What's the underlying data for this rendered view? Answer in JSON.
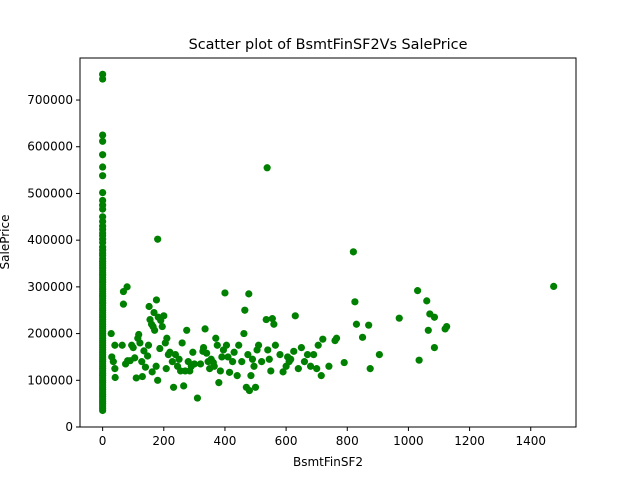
{
  "chart_data": {
    "type": "scatter",
    "title": "Scatter plot of BsmtFinSF2Vs SalePrice",
    "xlabel": "BsmtFinSF2",
    "ylabel": "SalePrice",
    "xlim": [
      -74,
      1548
    ],
    "ylim": [
      0,
      790000
    ],
    "xticks": [
      0,
      200,
      400,
      600,
      800,
      1000,
      1200,
      1400
    ],
    "yticks": [
      0,
      100000,
      200000,
      300000,
      400000,
      500000,
      600000,
      700000
    ],
    "marker_color": "#008000",
    "grid": false,
    "legend": "none",
    "series": [
      {
        "points": [
          [
            0,
            755000
          ],
          [
            0,
            745000
          ],
          [
            0,
            625000
          ],
          [
            0,
            611657
          ],
          [
            0,
            582933
          ],
          [
            0,
            556581
          ],
          [
            0,
            538000
          ],
          [
            0,
            501837
          ],
          [
            0,
            485000
          ],
          [
            0,
            475000
          ],
          [
            0,
            466500
          ],
          [
            0,
            450000
          ],
          [
            0,
            440000
          ],
          [
            0,
            430000
          ],
          [
            0,
            423000
          ],
          [
            0,
            415298
          ],
          [
            0,
            410000
          ],
          [
            0,
            402000
          ],
          [
            0,
            395000
          ],
          [
            0,
            385000
          ],
          [
            0,
            378500
          ],
          [
            0,
            372500
          ],
          [
            0,
            367294
          ],
          [
            0,
            360000
          ],
          [
            0,
            354000
          ],
          [
            0,
            350000
          ],
          [
            0,
            345000
          ],
          [
            0,
            340000
          ],
          [
            0,
            335000
          ],
          [
            0,
            330000
          ],
          [
            0,
            325000
          ],
          [
            0,
            320000
          ],
          [
            0,
            315000
          ],
          [
            0,
            310000
          ],
          [
            0,
            305000
          ],
          [
            0,
            300000
          ],
          [
            0,
            295000
          ],
          [
            0,
            290000
          ],
          [
            0,
            285000
          ],
          [
            0,
            280000
          ],
          [
            0,
            275000
          ],
          [
            0,
            270000
          ],
          [
            0,
            265000
          ],
          [
            0,
            260000
          ],
          [
            0,
            255000
          ],
          [
            0,
            250000
          ],
          [
            0,
            245000
          ],
          [
            0,
            240000
          ],
          [
            0,
            235000
          ],
          [
            0,
            230000
          ],
          [
            0,
            225000
          ],
          [
            0,
            220000
          ],
          [
            0,
            215000
          ],
          [
            0,
            210000
          ],
          [
            0,
            205000
          ],
          [
            0,
            200000
          ],
          [
            0,
            195000
          ],
          [
            0,
            190000
          ],
          [
            0,
            185000
          ],
          [
            0,
            180000
          ],
          [
            0,
            175000
          ],
          [
            0,
            170000
          ],
          [
            0,
            165000
          ],
          [
            0,
            160000
          ],
          [
            0,
            155000
          ],
          [
            0,
            150000
          ],
          [
            0,
            145000
          ],
          [
            0,
            140000
          ],
          [
            0,
            135000
          ],
          [
            0,
            130000
          ],
          [
            0,
            125000
          ],
          [
            0,
            120000
          ],
          [
            0,
            115000
          ],
          [
            0,
            110000
          ],
          [
            0,
            105000
          ],
          [
            0,
            100000
          ],
          [
            0,
            95000
          ],
          [
            0,
            90000
          ],
          [
            0,
            85000
          ],
          [
            0,
            80000
          ],
          [
            0,
            75000
          ],
          [
            0,
            70000
          ],
          [
            0,
            65000
          ],
          [
            0,
            60000
          ],
          [
            0,
            55000
          ],
          [
            0,
            50000
          ],
          [
            0,
            45000
          ],
          [
            0,
            40000
          ],
          [
            0,
            35311
          ],
          [
            28,
            200000
          ],
          [
            30,
            150000
          ],
          [
            35,
            140000
          ],
          [
            40,
            125000
          ],
          [
            41,
            106000
          ],
          [
            40,
            175000
          ],
          [
            64,
            175000
          ],
          [
            68,
            290000
          ],
          [
            80,
            300000
          ],
          [
            68,
            263000
          ],
          [
            75,
            135000
          ],
          [
            82,
            142000
          ],
          [
            90,
            142000
          ],
          [
            95,
            175000
          ],
          [
            100,
            170000
          ],
          [
            105,
            148000
          ],
          [
            110,
            105000
          ],
          [
            115,
            190000
          ],
          [
            118,
            198000
          ],
          [
            122,
            180000
          ],
          [
            128,
            140000
          ],
          [
            130,
            108000
          ],
          [
            135,
            163000
          ],
          [
            140,
            128000
          ],
          [
            147,
            152000
          ],
          [
            150,
            175000
          ],
          [
            152,
            258000
          ],
          [
            155,
            230000
          ],
          [
            160,
            220000
          ],
          [
            162,
            118000
          ],
          [
            165,
            215000
          ],
          [
            168,
            245000
          ],
          [
            170,
            207000
          ],
          [
            175,
            130000
          ],
          [
            176,
            272000
          ],
          [
            180,
            100000
          ],
          [
            180,
            402000
          ],
          [
            182,
            235000
          ],
          [
            187,
            168000
          ],
          [
            190,
            228000
          ],
          [
            195,
            215000
          ],
          [
            200,
            238000
          ],
          [
            205,
            180000
          ],
          [
            208,
            125000
          ],
          [
            210,
            190000
          ],
          [
            215,
            155000
          ],
          [
            220,
            160000
          ],
          [
            228,
            140000
          ],
          [
            232,
            85000
          ],
          [
            238,
            155000
          ],
          [
            245,
            130000
          ],
          [
            250,
            145000
          ],
          [
            255,
            120000
          ],
          [
            260,
            180000
          ],
          [
            265,
            88000
          ],
          [
            270,
            120000
          ],
          [
            275,
            207000
          ],
          [
            280,
            140000
          ],
          [
            285,
            120000
          ],
          [
            290,
            130000
          ],
          [
            295,
            160000
          ],
          [
            300,
            135000
          ],
          [
            310,
            62000
          ],
          [
            320,
            135000
          ],
          [
            328,
            162000
          ],
          [
            330,
            170000
          ],
          [
            335,
            210000
          ],
          [
            340,
            158000
          ],
          [
            345,
            140000
          ],
          [
            350,
            125000
          ],
          [
            355,
            145000
          ],
          [
            362,
            138000
          ],
          [
            365,
            130000
          ],
          [
            370,
            190000
          ],
          [
            375,
            175000
          ],
          [
            380,
            95000
          ],
          [
            385,
            120000
          ],
          [
            390,
            150000
          ],
          [
            395,
            165000
          ],
          [
            400,
            287000
          ],
          [
            405,
            175000
          ],
          [
            410,
            150000
          ],
          [
            415,
            117000
          ],
          [
            425,
            140000
          ],
          [
            430,
            160000
          ],
          [
            440,
            110000
          ],
          [
            445,
            175000
          ],
          [
            455,
            140000
          ],
          [
            462,
            200000
          ],
          [
            465,
            250000
          ],
          [
            470,
            85000
          ],
          [
            475,
            155000
          ],
          [
            478,
            285000
          ],
          [
            480,
            78000
          ],
          [
            485,
            110000
          ],
          [
            490,
            145000
          ],
          [
            495,
            130000
          ],
          [
            500,
            85000
          ],
          [
            505,
            165000
          ],
          [
            510,
            175000
          ],
          [
            520,
            140000
          ],
          [
            535,
            230000
          ],
          [
            538,
            555000
          ],
          [
            540,
            165000
          ],
          [
            545,
            145000
          ],
          [
            550,
            120000
          ],
          [
            555,
            232000
          ],
          [
            560,
            220000
          ],
          [
            565,
            175000
          ],
          [
            580,
            155000
          ],
          [
            590,
            118000
          ],
          [
            600,
            130000
          ],
          [
            605,
            150000
          ],
          [
            610,
            140000
          ],
          [
            615,
            145000
          ],
          [
            625,
            162000
          ],
          [
            630,
            238000
          ],
          [
            640,
            125000
          ],
          [
            650,
            170000
          ],
          [
            660,
            140000
          ],
          [
            670,
            155000
          ],
          [
            680,
            130000
          ],
          [
            690,
            155000
          ],
          [
            700,
            125000
          ],
          [
            705,
            175000
          ],
          [
            715,
            110000
          ],
          [
            720,
            188000
          ],
          [
            740,
            130000
          ],
          [
            760,
            185000
          ],
          [
            765,
            190000
          ],
          [
            790,
            138000
          ],
          [
            820,
            375000
          ],
          [
            825,
            268000
          ],
          [
            830,
            220000
          ],
          [
            850,
            192000
          ],
          [
            870,
            218000
          ],
          [
            875,
            125000
          ],
          [
            905,
            155000
          ],
          [
            970,
            233000
          ],
          [
            1030,
            292000
          ],
          [
            1035,
            143000
          ],
          [
            1060,
            270000
          ],
          [
            1065,
            207000
          ],
          [
            1070,
            242000
          ],
          [
            1085,
            235000
          ],
          [
            1085,
            170000
          ],
          [
            1120,
            210000
          ],
          [
            1125,
            215000
          ],
          [
            1475,
            301000
          ]
        ]
      }
    ]
  }
}
